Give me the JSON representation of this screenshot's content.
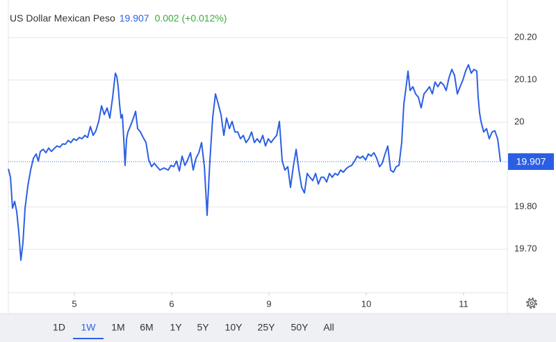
{
  "chart_data": {
    "type": "line",
    "title": "US Dollar Mexican Peso",
    "last_price": 19.907,
    "change": "0.002 (+0.012%)",
    "color": "#2b5fe3",
    "x": [
      4.321,
      4.343,
      4.364,
      4.386,
      4.407,
      4.429,
      4.45,
      4.471,
      4.493,
      4.521,
      4.55,
      4.579,
      4.607,
      4.629,
      4.65,
      4.679,
      4.707,
      4.736,
      4.764,
      4.793,
      4.821,
      4.85,
      4.879,
      4.907,
      4.936,
      4.964,
      4.993,
      5.021,
      5.05,
      5.079,
      5.107,
      5.136,
      5.164,
      5.193,
      5.221,
      5.25,
      5.279,
      5.307,
      5.336,
      5.364,
      5.393,
      5.421,
      5.436,
      5.45,
      5.464,
      5.479,
      5.493,
      5.507,
      5.521,
      5.536,
      5.55,
      5.579,
      5.607,
      5.629,
      5.65,
      5.679,
      5.707,
      5.736,
      5.764,
      5.793,
      5.821,
      5.85,
      5.879,
      5.921,
      5.964,
      5.993,
      6.021,
      6.05,
      6.079,
      6.107,
      6.136,
      6.164,
      6.193,
      6.221,
      6.25,
      6.279,
      6.307,
      6.336,
      6.364,
      6.393,
      6.421,
      6.45,
      6.479,
      6.507,
      6.536,
      6.564,
      6.593,
      6.621,
      6.65,
      6.679,
      6.707,
      6.736,
      6.764,
      6.793,
      6.821,
      6.85,
      6.879,
      6.907,
      6.936,
      6.964,
      6.993,
      7.021,
      7.05,
      7.079,
      7.107,
      7.136,
      7.164,
      7.193,
      7.221,
      7.25,
      7.279,
      7.307,
      7.336,
      7.364,
      7.393,
      7.421,
      7.45,
      7.479,
      7.507,
      7.536,
      7.564,
      7.593,
      7.621,
      7.65,
      7.679,
      7.707,
      7.736,
      7.764,
      7.793,
      7.821,
      7.85,
      7.879,
      7.907,
      7.936,
      7.964,
      7.993,
      8.021,
      8.05,
      8.079,
      8.107,
      8.136,
      8.164,
      8.193,
      8.221,
      8.25,
      8.279,
      8.307,
      8.336,
      8.364,
      8.386,
      8.414,
      8.429,
      8.45,
      8.479,
      8.507,
      8.536,
      8.564,
      8.593,
      8.621,
      8.65,
      8.679,
      8.707,
      8.736,
      8.764,
      8.793,
      8.821,
      8.85,
      8.879,
      8.907,
      8.936,
      8.964,
      8.993,
      9.021,
      9.05,
      9.079,
      9.107,
      9.136,
      9.15,
      9.164,
      9.179,
      9.207,
      9.236,
      9.264,
      9.293,
      9.321,
      9.35,
      9.364,
      9.379
    ],
    "values": [
      19.89,
      19.87,
      19.797,
      19.813,
      19.789,
      19.739,
      19.674,
      19.715,
      19.797,
      19.849,
      19.887,
      19.915,
      19.925,
      19.908,
      19.931,
      19.936,
      19.928,
      19.939,
      19.931,
      19.938,
      19.944,
      19.941,
      19.949,
      19.948,
      19.957,
      19.952,
      19.961,
      19.957,
      19.964,
      19.961,
      19.969,
      19.964,
      19.99,
      19.969,
      19.98,
      20.002,
      20.039,
      20.018,
      20.034,
      20.01,
      20.059,
      20.116,
      20.108,
      20.084,
      20.043,
      20.01,
      20.018,
      19.961,
      19.898,
      19.961,
      19.977,
      19.993,
      20.01,
      20.026,
      19.985,
      19.977,
      19.964,
      19.952,
      19.911,
      19.895,
      19.903,
      19.895,
      19.887,
      19.892,
      19.887,
      19.898,
      19.895,
      19.908,
      19.885,
      19.92,
      19.898,
      19.911,
      19.928,
      19.887,
      19.915,
      19.928,
      19.952,
      19.895,
      19.78,
      19.911,
      20.01,
      20.067,
      20.043,
      20.018,
      19.969,
      20.01,
      19.985,
      20.002,
      19.977,
      19.977,
      19.961,
      19.969,
      19.952,
      19.961,
      19.977,
      19.952,
      19.961,
      19.952,
      19.969,
      19.944,
      19.961,
      19.952,
      19.961,
      19.969,
      20.002,
      19.908,
      19.887,
      19.895,
      19.846,
      19.895,
      19.936,
      19.887,
      19.846,
      19.833,
      19.879,
      19.87,
      19.862,
      19.879,
      19.854,
      19.87,
      19.87,
      19.859,
      19.879,
      19.87,
      19.879,
      19.875,
      19.887,
      19.882,
      19.89,
      19.895,
      19.898,
      19.908,
      19.92,
      19.915,
      19.92,
      19.911,
      19.925,
      19.92,
      19.928,
      19.915,
      19.895,
      19.903,
      19.925,
      19.944,
      19.887,
      19.882,
      19.895,
      19.898,
      19.952,
      20.043,
      20.092,
      20.121,
      20.075,
      20.084,
      20.067,
      20.059,
      20.034,
      20.067,
      20.075,
      20.084,
      20.067,
      20.095,
      20.084,
      20.095,
      20.089,
      20.075,
      20.105,
      20.125,
      20.111,
      20.067,
      20.084,
      20.1,
      20.121,
      20.136,
      20.116,
      20.125,
      20.121,
      20.059,
      20.023,
      20.002,
      19.977,
      19.985,
      19.961,
      19.977,
      19.98,
      19.961,
      19.936,
      19.907
    ],
    "xlim": [
      4.321,
      9.45
    ],
    "xticks": [
      5,
      6,
      {
        "value": 7,
        "label": "9"
      },
      {
        "value": 8,
        "label": "10"
      },
      {
        "value": 9,
        "label": "11"
      }
    ],
    "ylim": [
      19.597,
      20.289
    ],
    "yticks": [
      {
        "value": 20.2,
        "label": "20.20"
      },
      {
        "value": 20.1,
        "label": "20.10"
      },
      20,
      {
        "value": 19.8,
        "label": "19.80"
      },
      {
        "value": 19.7,
        "label": "19.70"
      }
    ],
    "grid": true,
    "ranges": [
      "1D",
      "1W",
      "1M",
      "6M",
      "1Y",
      "5Y",
      "10Y",
      "25Y",
      "50Y",
      "All"
    ],
    "selected_range": "1W"
  }
}
